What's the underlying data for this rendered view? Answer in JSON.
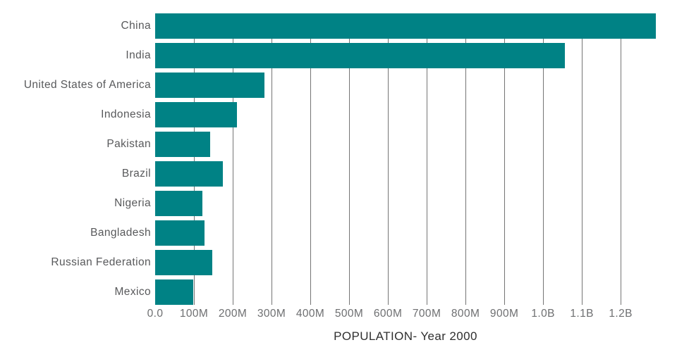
{
  "chart_data": {
    "type": "bar",
    "orientation": "horizontal",
    "title": "POPULATION- Year 2000",
    "xlabel": "POPULATION- Year 2000",
    "ylabel": "",
    "categories": [
      "China",
      "India",
      "United States of America",
      "Indonesia",
      "Pakistan",
      "Brazil",
      "Nigeria",
      "Bangladesh",
      "Russian Federation",
      "Mexico"
    ],
    "values_millions": [
      1290.6,
      1056.6,
      281.7,
      211.5,
      142.3,
      174.8,
      122.3,
      127.7,
      146.4,
      98.9
    ],
    "xlim_millions": [
      0,
      1290.6
    ],
    "x_ticks": [
      {
        "label": "0.0",
        "value_millions": 0
      },
      {
        "label": "100M",
        "value_millions": 100
      },
      {
        "label": "200M",
        "value_millions": 200
      },
      {
        "label": "300M",
        "value_millions": 300
      },
      {
        "label": "400M",
        "value_millions": 400
      },
      {
        "label": "500M",
        "value_millions": 500
      },
      {
        "label": "600M",
        "value_millions": 600
      },
      {
        "label": "700M",
        "value_millions": 700
      },
      {
        "label": "800M",
        "value_millions": 800
      },
      {
        "label": "900M",
        "value_millions": 900
      },
      {
        "label": "1.0B",
        "value_millions": 1000
      },
      {
        "label": "1.1B",
        "value_millions": 1100
      },
      {
        "label": "1.2B",
        "value_millions": 1200
      }
    ],
    "grid": true,
    "legend": false,
    "colors": {
      "bar": "#008285",
      "gridline": "#757575",
      "category_label": "#58595b",
      "tick_label": "#6e6f71",
      "title": "#2f2f2f",
      "background": "#ffffff"
    }
  }
}
